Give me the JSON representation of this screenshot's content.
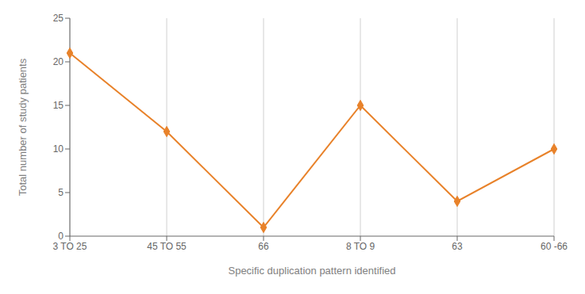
{
  "chart_data": {
    "type": "line",
    "categories": [
      "3 TO 25",
      "45 TO 55",
      "66",
      "8 TO 9",
      "63",
      "60 -66"
    ],
    "values": [
      21,
      12,
      1,
      15,
      4,
      10
    ],
    "color": "#E8822A",
    "marker": "diamond",
    "xlabel": "Specific duplication pattern identified",
    "ylabel": "Total number of study patients",
    "ylim": [
      0,
      25
    ],
    "yticks": [
      0,
      5,
      10,
      15,
      20,
      25
    ],
    "grid": "x"
  }
}
